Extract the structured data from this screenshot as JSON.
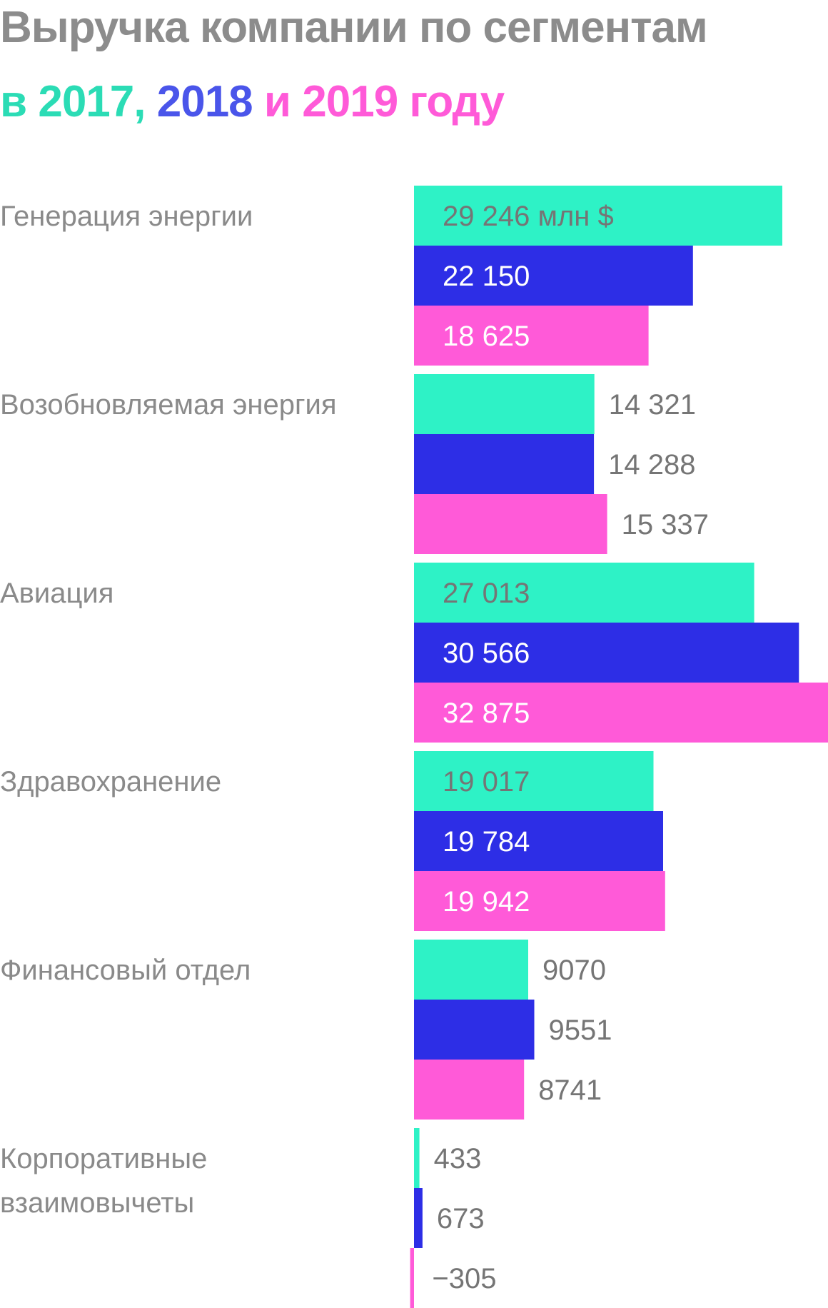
{
  "title": "Выручка компании по сегментам",
  "subtitle": {
    "prefix": "в ",
    "year1": "2017",
    "sep1": ", ",
    "year2": "2018",
    "sep2": " и ",
    "year3": "2019",
    "suffix": " году"
  },
  "colors": {
    "2017": "#2ef2c6",
    "2018": "#2d2ee6",
    "2019": "#ff5ad8",
    "title": "#8c8c8c",
    "label": "#8a8a8a",
    "value_dark": "#757575",
    "value_light": "#ffffff",
    "subtitle_2017": "#2bdcb5",
    "subtitle_2018": "#4a55ea",
    "subtitle_2019": "#ff5ad8"
  },
  "chart_data": {
    "type": "bar",
    "orientation": "horizontal",
    "title": "Выручка компании по сегментам",
    "subtitle": "в 2017, 2018 и 2019 году",
    "unit": "млн $",
    "xlabel": "",
    "ylabel": "",
    "grid": false,
    "legend": "in subtitle",
    "categories": [
      "Генерация энергии",
      "Возобновляемая энергия",
      "Авиация",
      "Здравохранение",
      "Финансовый отдел",
      "Корпоративные взаимовычеты"
    ],
    "category_lines": [
      [
        "Генерация энергии"
      ],
      [
        "Возобновляемая энергия"
      ],
      [
        "Авиация"
      ],
      [
        "Здравохранение"
      ],
      [
        "Финансовый отдел"
      ],
      [
        "Корпоративные",
        "взаимовычеты"
      ]
    ],
    "series": [
      {
        "name": "2017",
        "color": "#2ef2c6",
        "values": [
          29246,
          14321,
          27013,
          19017,
          9070,
          433
        ],
        "labels": [
          "29 246 млн $",
          "14 321",
          "27 013",
          "19 017",
          "9070",
          "433"
        ]
      },
      {
        "name": "2018",
        "color": "#2d2ee6",
        "values": [
          22150,
          14288,
          30566,
          19784,
          9551,
          673
        ],
        "labels": [
          "22 150",
          "14 288",
          "30 566",
          "19 784",
          "9551",
          "673"
        ]
      },
      {
        "name": "2019",
        "color": "#ff5ad8",
        "values": [
          18625,
          15337,
          32875,
          19942,
          8741,
          -305
        ],
        "labels": [
          "18 625",
          "15 337",
          "32 875",
          "19 942",
          "8741",
          "−305"
        ]
      }
    ],
    "xlim": [
      0,
      32875
    ]
  }
}
